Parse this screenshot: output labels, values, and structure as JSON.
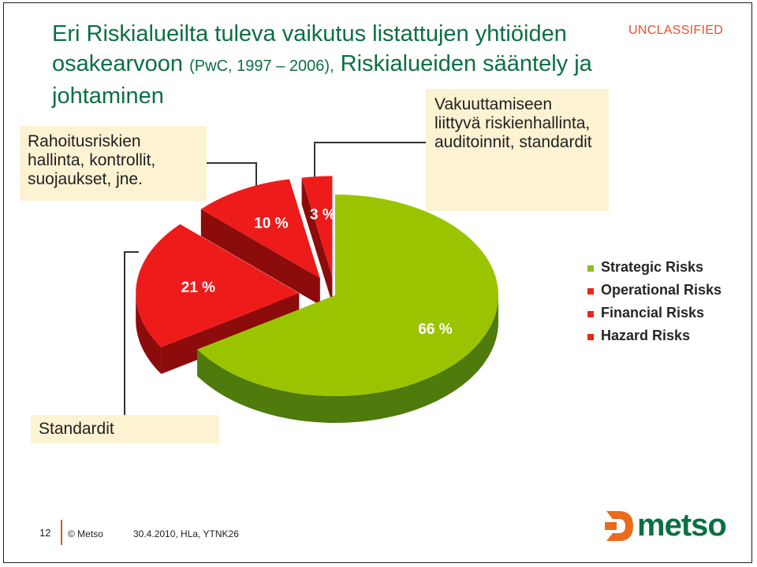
{
  "title": {
    "part1": "Eri Riskialueilta tuleva vaikutus listattujen yhtiöiden osakearvoon",
    "source": "(PwC, 1997 – 2006),",
    "part2": "Riskialueiden sääntely ja johtaminen"
  },
  "classification": "UNCLASSIFIED",
  "notes": {
    "financial": "Rahoitusriskien hallinta, kontrollit, suojaukset, jne.",
    "hazard": "Vakuuttamiseen liittyvä riskienhallinta, auditoinnit, standardit",
    "operational": "Standardit"
  },
  "chart_data": {
    "type": "pie",
    "title": "",
    "categories": [
      "Strategic Risks",
      "Operational Risks",
      "Financial Risks",
      "Hazard Risks"
    ],
    "values": [
      66,
      21,
      10,
      3
    ],
    "labels": [
      "66 %",
      "21 %",
      "10 %",
      "3 %"
    ],
    "colors": [
      "#9bc400",
      "#ee1b1b",
      "#ee1b1b",
      "#ee1b1b"
    ],
    "exploded": [
      "Operational Risks",
      "Financial Risks",
      "Hazard Risks"
    ],
    "legend_position": "right",
    "style": "3d-exploded"
  },
  "legend_colors": [
    "#8fbc1a",
    "#e42a1a",
    "#e42a1a",
    "#e42a1a"
  ],
  "footer": {
    "page_number": "12",
    "copyright": "© Metso",
    "date": "30.4.2010, HLa, YTNK26"
  },
  "logo": {
    "text": "metso",
    "color": "#0a6f43",
    "mark_color": "#ea6b1c"
  }
}
